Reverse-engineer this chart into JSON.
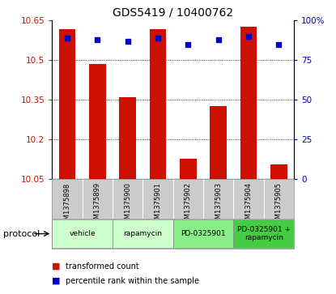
{
  "title": "GDS5419 / 10400762",
  "samples": [
    "GSM1375898",
    "GSM1375899",
    "GSM1375900",
    "GSM1375901",
    "GSM1375902",
    "GSM1375903",
    "GSM1375904",
    "GSM1375905"
  ],
  "red_values": [
    10.617,
    10.487,
    10.36,
    10.617,
    10.127,
    10.328,
    10.627,
    10.107
  ],
  "blue_values": [
    89,
    88,
    87,
    89,
    85,
    88,
    90,
    85
  ],
  "ylim_left": [
    10.05,
    10.65
  ],
  "ylim_right": [
    0,
    100
  ],
  "yticks_left": [
    10.05,
    10.2,
    10.35,
    10.5,
    10.65
  ],
  "ytick_left_labels": [
    "10.05",
    "10.2",
    "10.35",
    "10.5",
    "10.65"
  ],
  "yticks_right": [
    0,
    25,
    50,
    75,
    100
  ],
  "ytick_right_labels": [
    "0",
    "25",
    "50",
    "75",
    "100%"
  ],
  "grid_lines": [
    10.2,
    10.35,
    10.5
  ],
  "protocols": [
    {
      "label": "vehicle",
      "start": 0,
      "end": 1,
      "color": "#ccffcc"
    },
    {
      "label": "rapamycin",
      "start": 2,
      "end": 3,
      "color": "#ccffcc"
    },
    {
      "label": "PD-0325901",
      "start": 4,
      "end": 5,
      "color": "#88ee88"
    },
    {
      "label": "PD-0325901 +\nrapamycin",
      "start": 6,
      "end": 7,
      "color": "#55dd55"
    }
  ],
  "bar_color": "#cc1100",
  "marker_color": "#0000cc",
  "bg_sample_row": "#cccccc",
  "legend_red_label": "transformed count",
  "legend_blue_label": "percentile rank within the sample",
  "protocol_label": "protocol"
}
